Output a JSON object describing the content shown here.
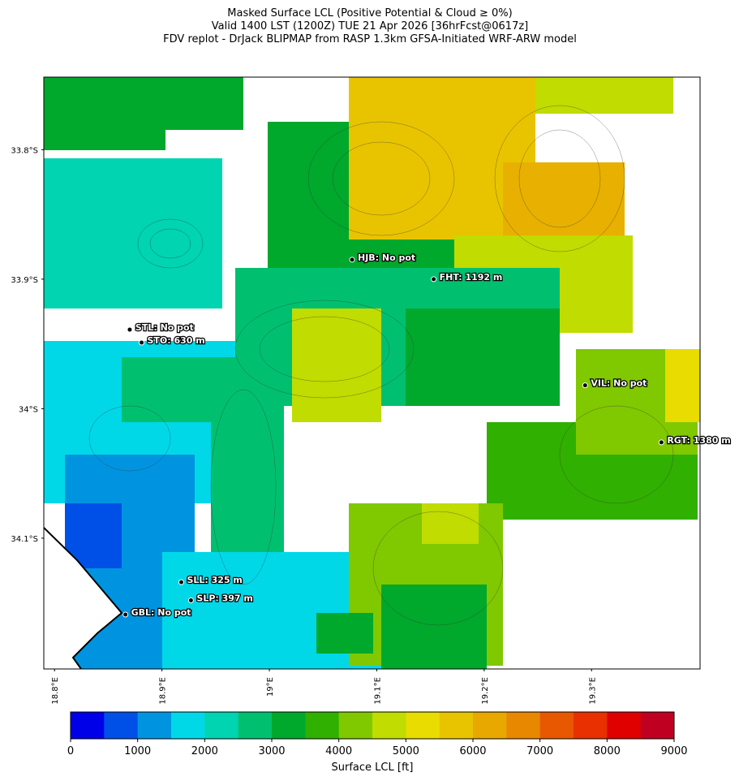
{
  "header": {
    "title": [
      "Masked Surface LCL (Positive Potential & Cloud ≥ 0%)",
      "Valid 1400 LST (1200Z) TUE 21 Apr 2026 [36hrFcst@0617z]",
      "FDV replot - DrJack BLIPMAP from RASP 1.3km GFSA-Initiated WRF-ARW model"
    ]
  },
  "map": {
    "xlim": [
      18.79,
      19.401
    ],
    "ylim": [
      -33.744,
      -34.201
    ],
    "xticks": [
      {
        "value": 18.8,
        "label": "18.8°E"
      },
      {
        "value": 18.9,
        "label": "18.9°E"
      },
      {
        "value": 19.0,
        "label": "19°E"
      },
      {
        "value": 19.1,
        "label": "19.1°E"
      },
      {
        "value": 19.2,
        "label": "19.2°E"
      },
      {
        "value": 19.3,
        "label": "19.3°E"
      }
    ],
    "yticks": [
      {
        "value": -33.8,
        "label": "33.8°S"
      },
      {
        "value": -33.9,
        "label": "33.9°S"
      },
      {
        "value": -34.0,
        "label": "34°S"
      },
      {
        "value": -34.1,
        "label": "34.1°S"
      }
    ],
    "stations": [
      {
        "label": "HJB: No pot",
        "lon": 19.077,
        "lat": -33.885
      },
      {
        "label": "FHT: 1192 m",
        "lon": 19.153,
        "lat": -33.9
      },
      {
        "label": "STL: No pot",
        "lon": 18.87,
        "lat": -33.939
      },
      {
        "label": "STO: 630 m",
        "lon": 18.881,
        "lat": -33.949
      },
      {
        "label": "VIL: No pot",
        "lon": 19.294,
        "lat": -33.982
      },
      {
        "label": "RGT: 1380 m",
        "lon": 19.365,
        "lat": -34.026
      },
      {
        "label": "SLL: 325 m",
        "lon": 18.918,
        "lat": -34.134
      },
      {
        "label": "SLP: 397 m",
        "lon": 18.927,
        "lat": -34.148
      },
      {
        "label": "GBL: No pot",
        "lon": 18.866,
        "lat": -34.159
      }
    ]
  },
  "colorbar": {
    "label": "Surface LCL [ft]",
    "lim": [
      0,
      9000
    ],
    "ticks": [
      0,
      1000,
      2000,
      3000,
      4000,
      5000,
      6000,
      7000,
      8000,
      9000
    ],
    "colors": [
      "#0000e8",
      "#0050e8",
      "#0094e0",
      "#00d8e8",
      "#00d4b0",
      "#00c070",
      "#00a82c",
      "#30b000",
      "#80c800",
      "#c0dc00",
      "#e8dc00",
      "#e8c400",
      "#e8a800",
      "#e88800",
      "#e85800",
      "#e83000",
      "#e00000",
      "#c00020"
    ]
  }
}
